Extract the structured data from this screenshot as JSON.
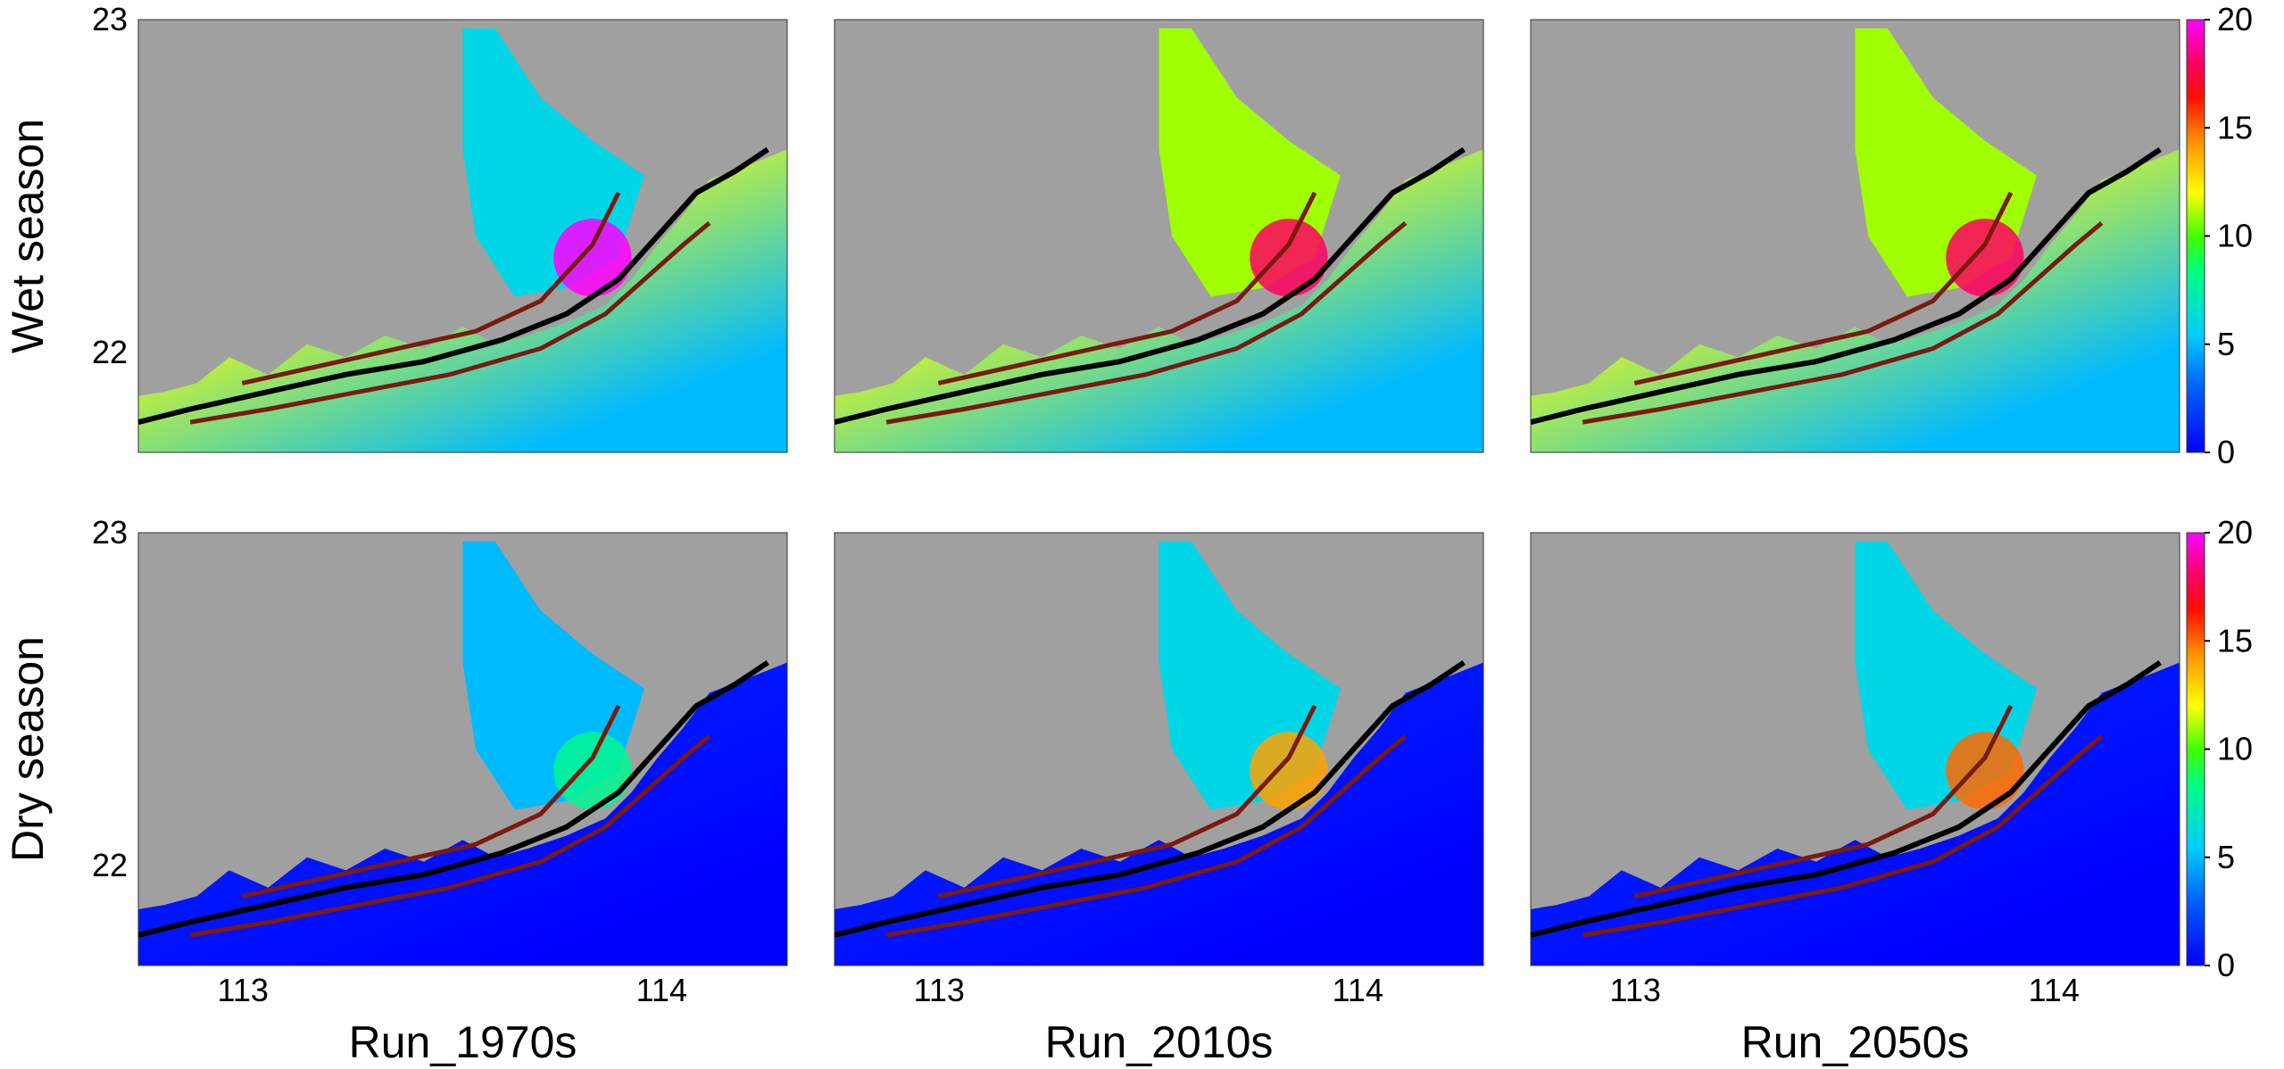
{
  "chart_data": {
    "type": "heatmap",
    "row_labels": [
      "Wet season",
      "Dry season"
    ],
    "column_titles": [
      "Run_1970s",
      "Run_2010s",
      "Run_2050s"
    ],
    "x_ticks": [
      113,
      114
    ],
    "y_ticks": [
      22,
      23
    ],
    "xlim": [
      112.75,
      114.3
    ],
    "ylim": [
      21.7,
      23.0
    ],
    "colorbar": {
      "ticks": [
        0,
        5,
        10,
        15,
        20
      ],
      "range": [
        0,
        20
      ],
      "colormap": [
        "#0000ff",
        "#00aaff",
        "#00ffff",
        "#00ff40",
        "#7fff00",
        "#ffff00",
        "#ff8000",
        "#ff0000",
        "#ff00ff"
      ]
    },
    "land_color": "#a0a0a0",
    "panels": [
      {
        "row": "Wet season",
        "column": "Run_1970s",
        "intensity_estuary": 0.3,
        "intensity_shelf": 0.6,
        "hotspot": 1.0
      },
      {
        "row": "Wet season",
        "column": "Run_2010s",
        "intensity_estuary": 0.55,
        "intensity_shelf": 0.6,
        "hotspot": 0.9
      },
      {
        "row": "Wet season",
        "column": "Run_2050s",
        "intensity_estuary": 0.55,
        "intensity_shelf": 0.6,
        "hotspot": 0.9
      },
      {
        "row": "Dry season",
        "column": "Run_1970s",
        "intensity_estuary": 0.25,
        "intensity_shelf": 0.05,
        "hotspot": 0.4
      },
      {
        "row": "Dry season",
        "column": "Run_2010s",
        "intensity_estuary": 0.3,
        "intensity_shelf": 0.05,
        "hotspot": 0.7
      },
      {
        "row": "Dry season",
        "column": "Run_2050s",
        "intensity_estuary": 0.3,
        "intensity_shelf": 0.05,
        "hotspot": 0.75
      }
    ]
  }
}
